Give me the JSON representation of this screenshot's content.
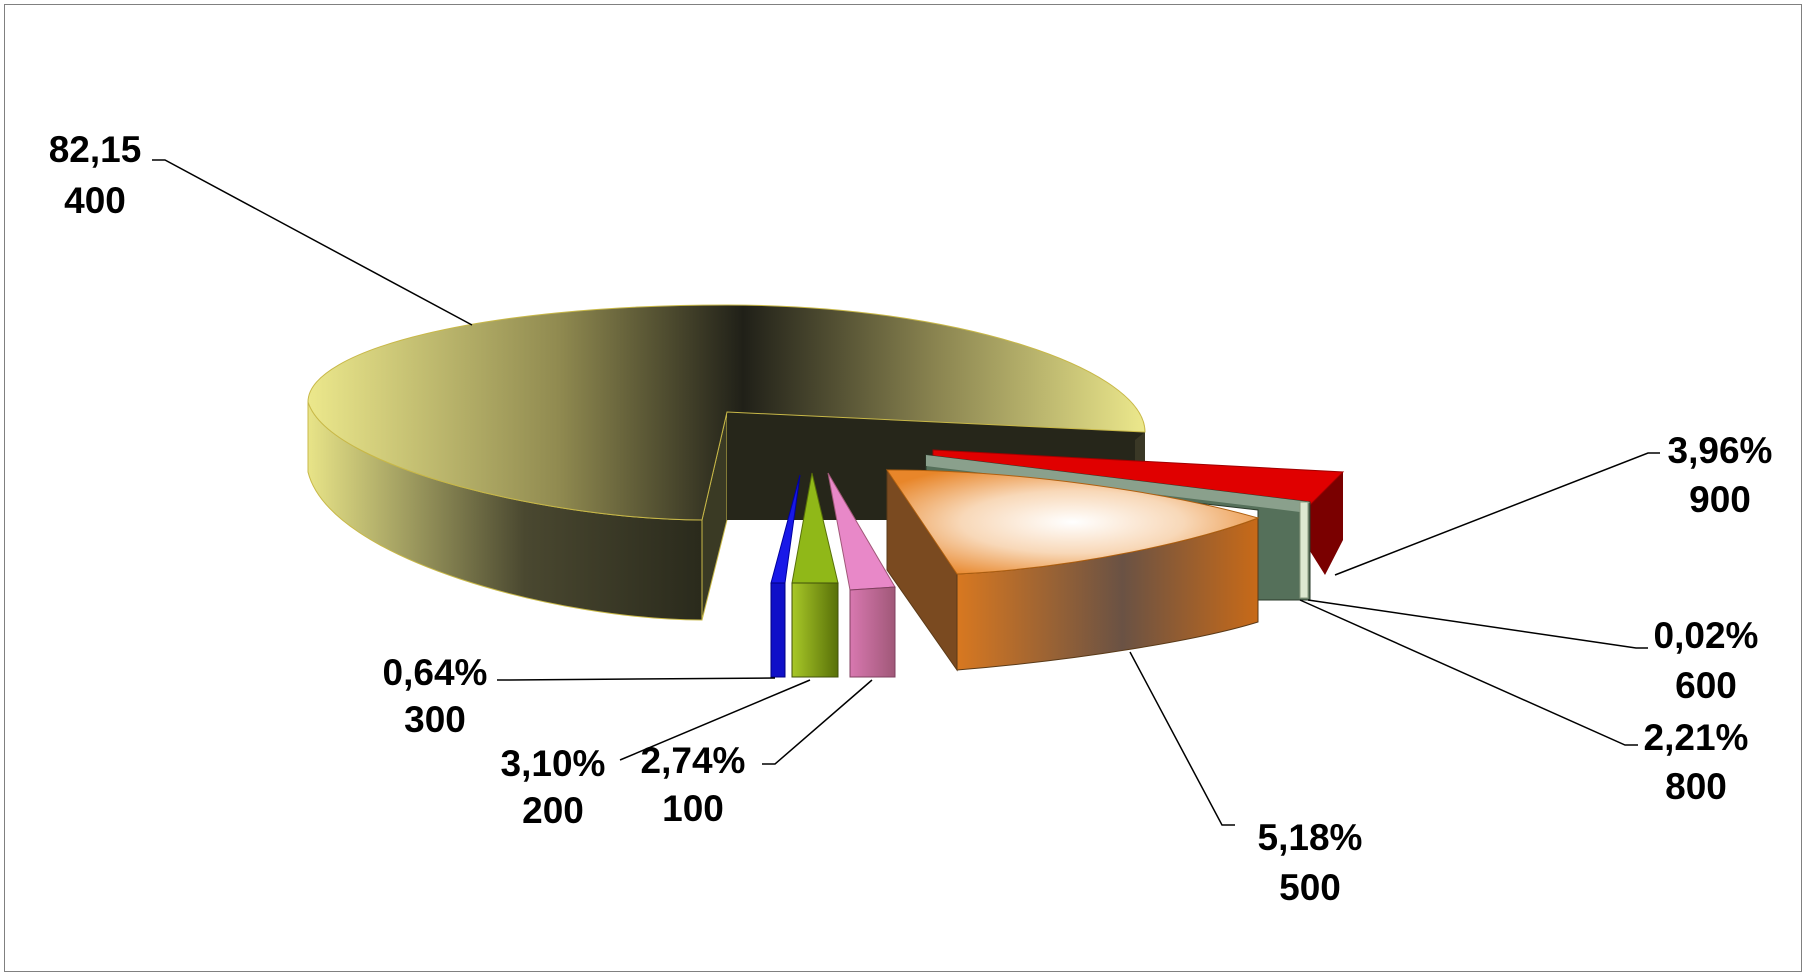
{
  "chart_data": {
    "type": "pie",
    "style": "3d-exploded",
    "title": "",
    "legend": "none",
    "slices": [
      {
        "category": "400",
        "percent_label": "82,15",
        "value": 82.15,
        "color": "#e8e07a"
      },
      {
        "category": "900",
        "percent_label": "3,96%",
        "value": 3.96,
        "color": "#e00000"
      },
      {
        "category": "600",
        "percent_label": "0,02%",
        "value": 0.02,
        "color": "#dce8d0"
      },
      {
        "category": "800",
        "percent_label": "2,21%",
        "value": 2.21,
        "color": "#55705a"
      },
      {
        "category": "500",
        "percent_label": "5,18%",
        "value": 5.18,
        "color": "#e8862a"
      },
      {
        "category": "100",
        "percent_label": "2,74%",
        "value": 2.74,
        "color": "#e888c8"
      },
      {
        "category": "200",
        "percent_label": "3,10%",
        "value": 3.1,
        "color": "#90b818"
      },
      {
        "category": "300",
        "percent_label": "0,64%",
        "value": 0.64,
        "color": "#1010d8"
      }
    ]
  }
}
